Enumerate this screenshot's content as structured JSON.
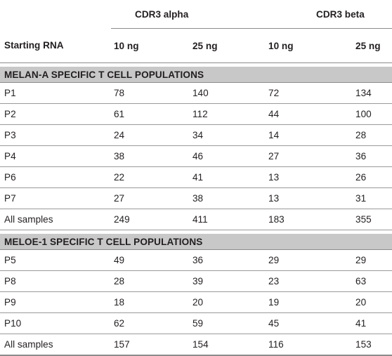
{
  "header": {
    "row_label": "Starting RNA",
    "groups": [
      "CDR3 alpha",
      "CDR3 beta"
    ],
    "subheaders": [
      "10 ng",
      "25 ng",
      "10 ng",
      "25 ng"
    ]
  },
  "sections": [
    {
      "title": "MELAN-A SPECIFIC T CELL POPULATIONS",
      "rows": [
        {
          "label": "P1",
          "values": [
            "78",
            "140",
            "72",
            "134"
          ]
        },
        {
          "label": "P2",
          "values": [
            "61",
            "112",
            "44",
            "100"
          ]
        },
        {
          "label": "P3",
          "values": [
            "24",
            "34",
            "14",
            "28"
          ]
        },
        {
          "label": "P4",
          "values": [
            "38",
            "46",
            "27",
            "36"
          ]
        },
        {
          "label": "P6",
          "values": [
            "22",
            "41",
            "13",
            "26"
          ]
        },
        {
          "label": "P7",
          "values": [
            "27",
            "38",
            "13",
            "31"
          ]
        },
        {
          "label": "All samples",
          "values": [
            "249",
            "411",
            "183",
            "355"
          ]
        }
      ]
    },
    {
      "title": "MELOE-1 SPECIFIC T CELL POPULATIONS",
      "rows": [
        {
          "label": "P5",
          "values": [
            "49",
            "36",
            "29",
            "29"
          ]
        },
        {
          "label": "P8",
          "values": [
            "28",
            "39",
            "23",
            "63"
          ]
        },
        {
          "label": "P9",
          "values": [
            "18",
            "20",
            "19",
            "20"
          ]
        },
        {
          "label": "P10",
          "values": [
            "62",
            "59",
            "45",
            "41"
          ]
        },
        {
          "label": "All samples",
          "values": [
            "157",
            "154",
            "116",
            "153"
          ]
        }
      ]
    }
  ]
}
